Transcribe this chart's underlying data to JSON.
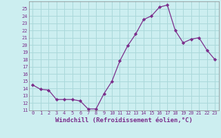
{
  "x": [
    0,
    1,
    2,
    3,
    4,
    5,
    6,
    7,
    8,
    9,
    10,
    11,
    12,
    13,
    14,
    15,
    16,
    17,
    18,
    19,
    20,
    21,
    22,
    23
  ],
  "y": [
    14.5,
    13.9,
    13.8,
    12.5,
    12.5,
    12.5,
    12.3,
    11.2,
    11.2,
    13.3,
    15.0,
    17.8,
    19.9,
    21.5,
    23.5,
    24.0,
    25.2,
    25.5,
    22.0,
    20.3,
    20.8,
    21.0,
    19.3,
    18.0
  ],
  "line_color": "#7b2d8b",
  "marker": "D",
  "marker_size": 2.2,
  "background_color": "#cceef0",
  "grid_color": "#aad8da",
  "xlabel": "Windchill (Refroidissement éolien,°C)",
  "ylim": [
    11,
    26
  ],
  "xlim": [
    -0.5,
    23.5
  ],
  "yticks": [
    11,
    12,
    13,
    14,
    15,
    16,
    17,
    18,
    19,
    20,
    21,
    22,
    23,
    24,
    25
  ],
  "xticks": [
    0,
    1,
    2,
    3,
    4,
    5,
    6,
    7,
    8,
    9,
    10,
    11,
    12,
    13,
    14,
    15,
    16,
    17,
    18,
    19,
    20,
    21,
    22,
    23
  ],
  "tick_fontsize": 5.0,
  "xlabel_fontsize": 6.5,
  "label_color": "#7b2d8b"
}
